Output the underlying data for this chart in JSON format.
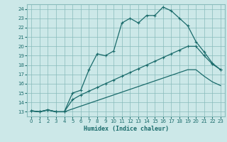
{
  "xlabel": "Humidex (Indice chaleur)",
  "background_color": "#cce8e8",
  "grid_color": "#88bbbb",
  "line_color": "#1a6b6b",
  "xlim": [
    -0.5,
    23.5
  ],
  "ylim": [
    12.5,
    24.5
  ],
  "xticks": [
    0,
    1,
    2,
    3,
    4,
    5,
    6,
    7,
    8,
    9,
    10,
    11,
    12,
    13,
    14,
    15,
    16,
    17,
    18,
    19,
    20,
    21,
    22,
    23
  ],
  "yticks": [
    13,
    14,
    15,
    16,
    17,
    18,
    19,
    20,
    21,
    22,
    23,
    24
  ],
  "line1_x": [
    0,
    1,
    2,
    3,
    4,
    5,
    6,
    7,
    8,
    9,
    10,
    11,
    12,
    13,
    14,
    15,
    16,
    17,
    18,
    19,
    20,
    21,
    22,
    23
  ],
  "line1_y": [
    13.1,
    13.0,
    13.2,
    13.0,
    13.0,
    15.0,
    15.3,
    17.5,
    19.2,
    19.0,
    19.5,
    22.5,
    23.0,
    22.5,
    23.3,
    23.3,
    24.2,
    23.8,
    23.0,
    22.2,
    20.5,
    19.4,
    18.2,
    17.5
  ],
  "line2_x": [
    0,
    1,
    2,
    3,
    4,
    5,
    6,
    7,
    8,
    9,
    10,
    11,
    12,
    13,
    14,
    15,
    16,
    17,
    18,
    19,
    20,
    21,
    22,
    23
  ],
  "line2_y": [
    13.1,
    13.0,
    13.2,
    13.0,
    13.0,
    14.3,
    14.8,
    15.2,
    15.6,
    16.0,
    16.4,
    16.8,
    17.2,
    17.6,
    18.0,
    18.4,
    18.8,
    19.2,
    19.6,
    20.0,
    20.0,
    19.0,
    18.1,
    17.5
  ],
  "line3_x": [
    0,
    1,
    2,
    3,
    4,
    5,
    6,
    7,
    8,
    9,
    10,
    11,
    12,
    13,
    14,
    15,
    16,
    17,
    18,
    19,
    20,
    21,
    22,
    23
  ],
  "line3_y": [
    13.1,
    13.0,
    13.2,
    13.0,
    13.0,
    13.3,
    13.6,
    13.9,
    14.2,
    14.5,
    14.8,
    15.1,
    15.4,
    15.7,
    16.0,
    16.3,
    16.6,
    16.9,
    17.2,
    17.5,
    17.5,
    16.8,
    16.2,
    15.8
  ]
}
